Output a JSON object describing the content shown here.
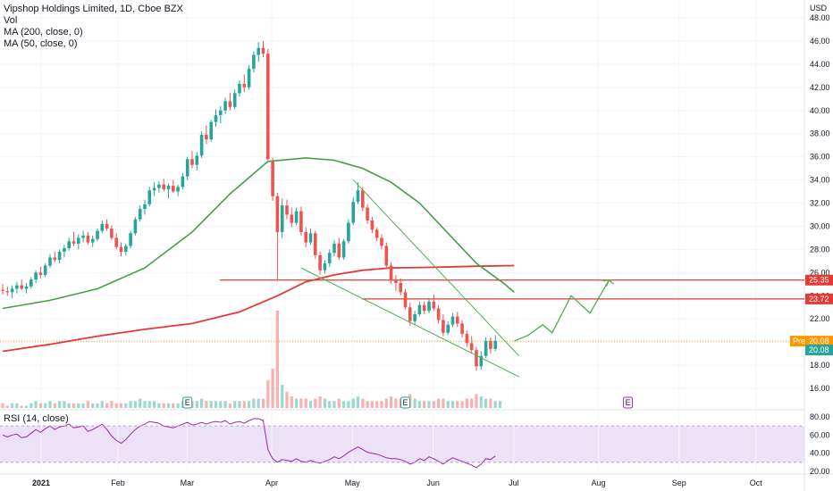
{
  "header": {
    "title": "Vipshop Holdings Limited, 1D, Cboe BZX",
    "indicators": [
      "Vol",
      "MA (200, close, 0)",
      "MA (50, close, 0)"
    ]
  },
  "rsi_label": "RSI (14, close)",
  "currency": "USD",
  "colors": {
    "up": "#26a69a",
    "down": "#ef5350",
    "ma200": "#e53935",
    "ma50": "#43a047",
    "projection": "#4caf50",
    "level_line": "#e53935",
    "pre_line": "#ff9800",
    "rsi_line": "#9c27b0",
    "rsi_band": "#ede1f7"
  },
  "chart_data": [
    {
      "type": "candlestick",
      "title": "Vipshop Holdings Limited, 1D, Cboe BZX",
      "x_ticks": [
        "2021",
        "Feb",
        "Mar",
        "Apr",
        "May",
        "Jun",
        "Jul",
        "Aug",
        "Sep",
        "Oct"
      ],
      "y_ticks": [
        16,
        18,
        20,
        22,
        24,
        26,
        28,
        30,
        32,
        34,
        36,
        38,
        40,
        42,
        44,
        46,
        48
      ],
      "ylim": [
        15,
        49
      ],
      "price_labels": [
        {
          "label": "25.35",
          "value": 25.35,
          "color": "#e53935"
        },
        {
          "label": "23.72",
          "value": 23.72,
          "color": "#e53935"
        },
        {
          "label": "20.08",
          "value": 20.08,
          "color": "#ff9800",
          "prefix": "Pre"
        },
        {
          "label": "20.08",
          "value": 20.08,
          "color": "#26a69a"
        }
      ],
      "horizontal_levels": [
        25.35,
        23.72
      ],
      "annotations": [
        "E",
        "E",
        "E"
      ],
      "series": [
        {
          "type": "candles",
          "points": [
            [
              24.5,
              25.0,
              24.1,
              24.4
            ],
            [
              24.4,
              24.8,
              24.0,
              24.3
            ],
            [
              24.3,
              24.9,
              23.8,
              24.6
            ],
            [
              24.6,
              25.2,
              24.2,
              24.9
            ],
            [
              24.9,
              25.4,
              24.5,
              24.6
            ],
            [
              24.6,
              25.1,
              24.2,
              24.8
            ],
            [
              24.8,
              25.6,
              24.6,
              25.4
            ],
            [
              25.4,
              26.2,
              25.1,
              26.0
            ],
            [
              26.0,
              26.5,
              25.5,
              25.8
            ],
            [
              25.8,
              26.8,
              25.6,
              26.6
            ],
            [
              26.6,
              27.6,
              26.4,
              27.3
            ],
            [
              27.3,
              27.8,
              26.9,
              27.1
            ],
            [
              27.1,
              28.0,
              26.8,
              27.8
            ],
            [
              27.8,
              28.4,
              27.3,
              28.1
            ],
            [
              28.1,
              29.0,
              27.9,
              28.7
            ],
            [
              28.7,
              29.5,
              28.3,
              28.5
            ],
            [
              28.5,
              29.3,
              28.0,
              29.0
            ],
            [
              29.0,
              29.6,
              28.6,
              29.2
            ],
            [
              29.2,
              29.5,
              28.4,
              28.6
            ],
            [
              28.6,
              29.2,
              28.2,
              28.9
            ],
            [
              28.9,
              29.8,
              28.7,
              29.6
            ],
            [
              29.6,
              30.5,
              29.4,
              30.2
            ],
            [
              30.2,
              30.6,
              29.6,
              29.8
            ],
            [
              29.8,
              30.1,
              28.8,
              29.0
            ],
            [
              29.0,
              29.4,
              28.0,
              28.2
            ],
            [
              28.2,
              28.6,
              27.4,
              27.8
            ],
            [
              27.8,
              28.5,
              27.5,
              28.3
            ],
            [
              28.3,
              29.6,
              28.1,
              29.4
            ],
            [
              29.4,
              30.8,
              29.2,
              30.6
            ],
            [
              30.6,
              31.8,
              30.4,
              31.5
            ],
            [
              31.5,
              32.3,
              31.0,
              31.9
            ],
            [
              31.9,
              33.4,
              31.7,
              33.1
            ],
            [
              33.1,
              33.8,
              32.6,
              33.3
            ],
            [
              33.3,
              33.9,
              32.9,
              33.6
            ],
            [
              33.6,
              34.1,
              33.0,
              33.2
            ],
            [
              33.2,
              33.7,
              32.4,
              33.5
            ],
            [
              33.5,
              34.0,
              32.9,
              33.0
            ],
            [
              33.0,
              33.6,
              32.6,
              33.4
            ],
            [
              33.4,
              34.6,
              33.2,
              34.3
            ],
            [
              34.3,
              36.0,
              34.0,
              35.8
            ],
            [
              35.8,
              36.5,
              35.0,
              35.3
            ],
            [
              35.3,
              36.4,
              34.8,
              36.1
            ],
            [
              36.1,
              38.2,
              35.9,
              37.9
            ],
            [
              37.9,
              38.7,
              37.1,
              37.5
            ],
            [
              37.5,
              39.2,
              37.3,
              39.0
            ],
            [
              39.0,
              40.1,
              38.6,
              39.6
            ],
            [
              39.6,
              40.4,
              38.9,
              40.0
            ],
            [
              40.0,
              41.1,
              39.7,
              40.8
            ],
            [
              40.8,
              41.5,
              40.0,
              40.3
            ],
            [
              40.3,
              41.8,
              40.1,
              41.5
            ],
            [
              41.5,
              42.6,
              41.2,
              42.3
            ],
            [
              42.3,
              43.1,
              41.6,
              42.0
            ],
            [
              42.0,
              43.9,
              41.8,
              43.6
            ],
            [
              43.6,
              45.1,
              43.3,
              44.8
            ],
            [
              44.8,
              45.9,
              44.2,
              45.4
            ],
            [
              45.4,
              46.0,
              44.6,
              44.9
            ],
            [
              44.9,
              45.3,
              35.7,
              35.8
            ],
            [
              35.6,
              35.9,
              32.2,
              32.6
            ],
            [
              32.6,
              32.9,
              25.3,
              29.5
            ],
            [
              29.5,
              32.4,
              29.0,
              31.8
            ],
            [
              31.8,
              32.3,
              30.6,
              31.0
            ],
            [
              31.0,
              31.6,
              29.9,
              30.3
            ],
            [
              30.3,
              31.6,
              30.1,
              31.3
            ],
            [
              31.3,
              31.7,
              29.2,
              29.5
            ],
            [
              29.5,
              29.9,
              28.2,
              28.6
            ],
            [
              28.6,
              29.8,
              28.4,
              29.4
            ],
            [
              29.4,
              29.6,
              27.2,
              27.5
            ],
            [
              27.5,
              27.8,
              25.8,
              26.2
            ],
            [
              26.2,
              27.1,
              25.9,
              26.8
            ],
            [
              26.8,
              28.0,
              26.5,
              27.7
            ],
            [
              27.7,
              28.8,
              27.4,
              28.5
            ],
            [
              28.5,
              29.0,
              27.1,
              27.3
            ],
            [
              27.3,
              28.9,
              27.1,
              28.7
            ],
            [
              28.7,
              30.6,
              28.5,
              30.3
            ],
            [
              30.3,
              32.5,
              30.1,
              32.1
            ],
            [
              32.1,
              33.8,
              31.9,
              33.1
            ],
            [
              33.1,
              33.4,
              31.3,
              31.6
            ],
            [
              31.6,
              31.9,
              30.2,
              30.5
            ],
            [
              30.5,
              30.8,
              29.4,
              29.7
            ],
            [
              29.7,
              29.9,
              28.7,
              29.0
            ],
            [
              29.0,
              29.3,
              28.0,
              28.3
            ],
            [
              28.3,
              28.6,
              26.3,
              26.6
            ],
            [
              26.6,
              26.9,
              25.0,
              25.3
            ],
            [
              25.3,
              25.8,
              24.4,
              25.1
            ],
            [
              25.1,
              25.5,
              24.0,
              24.3
            ],
            [
              24.3,
              24.6,
              22.8,
              23.0
            ],
            [
              23.0,
              23.4,
              21.4,
              21.8
            ],
            [
              21.8,
              22.7,
              21.5,
              22.4
            ],
            [
              22.4,
              23.5,
              22.2,
              23.2
            ],
            [
              23.2,
              23.5,
              22.4,
              22.7
            ],
            [
              22.7,
              23.8,
              22.5,
              23.5
            ],
            [
              23.5,
              24.1,
              22.7,
              22.9
            ],
            [
              22.9,
              23.2,
              21.6,
              21.9
            ],
            [
              21.9,
              22.4,
              20.5,
              20.8
            ],
            [
              20.8,
              21.8,
              20.6,
              21.5
            ],
            [
              21.5,
              22.5,
              21.3,
              22.2
            ],
            [
              22.2,
              22.6,
              21.3,
              21.6
            ],
            [
              21.6,
              21.9,
              20.4,
              20.7
            ],
            [
              20.7,
              21.0,
              19.6,
              19.9
            ],
            [
              19.9,
              20.5,
              19.0,
              19.3
            ],
            [
              19.3,
              19.6,
              17.5,
              17.9
            ],
            [
              17.9,
              19.2,
              17.6,
              18.8
            ],
            [
              18.8,
              20.4,
              18.6,
              20.1
            ],
            [
              20.1,
              20.4,
              19.0,
              19.4
            ],
            [
              19.4,
              20.6,
              19.2,
              20.08
            ]
          ]
        },
        {
          "name": "MA (50, close, 0)",
          "points": [
            [
              0,
              22.9
            ],
            [
              10,
              23.6
            ],
            [
              20,
              24.6
            ],
            [
              30,
              26.4
            ],
            [
              40,
              29.5
            ],
            [
              48,
              32.8
            ],
            [
              56,
              35.6
            ],
            [
              64,
              35.9
            ],
            [
              70,
              35.7
            ],
            [
              76,
              35.0
            ],
            [
              82,
              33.8
            ],
            [
              88,
              32.0
            ],
            [
              94,
              29.4
            ],
            [
              100,
              26.8
            ],
            [
              106,
              25.0
            ],
            [
              108,
              24.3
            ]
          ]
        },
        {
          "name": "MA (200, close, 0)",
          "points": [
            [
              0,
              19.2
            ],
            [
              10,
              19.8
            ],
            [
              20,
              20.5
            ],
            [
              30,
              21.1
            ],
            [
              40,
              21.6
            ],
            [
              50,
              22.6
            ],
            [
              58,
              24.0
            ],
            [
              64,
              25.2
            ],
            [
              70,
              25.8
            ],
            [
              76,
              26.2
            ],
            [
              82,
              26.4
            ],
            [
              90,
              26.45
            ],
            [
              100,
              26.55
            ],
            [
              108,
              26.6
            ]
          ]
        }
      ],
      "trendlines": [
        {
          "from": [
            74,
            34.0
          ],
          "to": [
            109,
            18.8
          ]
        },
        {
          "from": [
            63,
            26.4
          ],
          "to": [
            109,
            17.0
          ]
        }
      ],
      "projection": [
        [
          108,
          20.08
        ],
        [
          111,
          20.6
        ],
        [
          114,
          21.5
        ],
        [
          116,
          20.8
        ],
        [
          120,
          24.0
        ],
        [
          124,
          22.5
        ],
        [
          128,
          25.35
        ],
        [
          129,
          25.0
        ]
      ],
      "volume": {
        "values": [
          2,
          1,
          2,
          2,
          1,
          1,
          2,
          3,
          2,
          2,
          3,
          2,
          3,
          3,
          2,
          2,
          2,
          2,
          3,
          2,
          2,
          3,
          2,
          3,
          2,
          2,
          2,
          3,
          3,
          4,
          3,
          3,
          3,
          2,
          2,
          2,
          2,
          2,
          3,
          4,
          3,
          3,
          4,
          3,
          3,
          3,
          3,
          3,
          2,
          3,
          3,
          3,
          3,
          4,
          4,
          4,
          12,
          17,
          42,
          10,
          7,
          5,
          4,
          4,
          4,
          3,
          4,
          5,
          4,
          3,
          3,
          4,
          3,
          3,
          4,
          5,
          4,
          3,
          3,
          3,
          3,
          4,
          5,
          4,
          4,
          5,
          6,
          4,
          3,
          3,
          3,
          3,
          4,
          4,
          3,
          3,
          3,
          3,
          4,
          4,
          6,
          5,
          4,
          4,
          3,
          3
        ]
      }
    },
    {
      "type": "line",
      "title": "RSI (14, close)",
      "y_ticks": [
        20,
        40,
        60,
        80
      ],
      "ylim": [
        15,
        85
      ],
      "band": [
        30,
        70
      ],
      "series": [
        {
          "name": "RSI (14, close)",
          "values": [
            60,
            58,
            60,
            61,
            57,
            58,
            62,
            66,
            63,
            67,
            70,
            66,
            69,
            70,
            72,
            68,
            69,
            70,
            64,
            66,
            69,
            72,
            66,
            59,
            54,
            51,
            55,
            61,
            66,
            70,
            72,
            75,
            74,
            73,
            70,
            69,
            68,
            70,
            72,
            74,
            71,
            72,
            74,
            72,
            74,
            75,
            74,
            76,
            72,
            74,
            75,
            73,
            76,
            78,
            78,
            76,
            44,
            34,
            30,
            33,
            32,
            31,
            34,
            31,
            30,
            32,
            30,
            29,
            31,
            33,
            36,
            34,
            37,
            41,
            44,
            47,
            44,
            41,
            40,
            39,
            37,
            35,
            34,
            34,
            33,
            31,
            28,
            30,
            34,
            32,
            36,
            34,
            31,
            28,
            32,
            35,
            33,
            31,
            29,
            27,
            24,
            28,
            34,
            33,
            37
          ]
        }
      ]
    }
  ]
}
